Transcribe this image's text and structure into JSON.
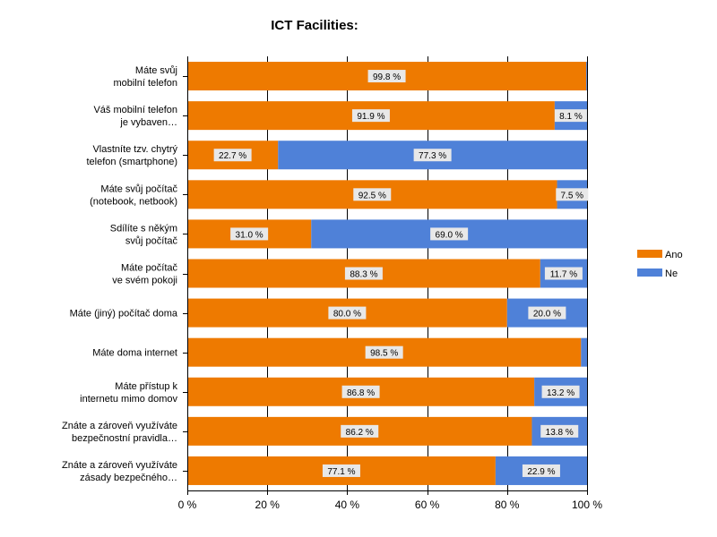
{
  "chart_data": {
    "type": "bar",
    "orientation": "horizontal",
    "stacked": "percent",
    "title": "ICT Facilities:",
    "categories": [
      [
        "Máte svůj",
        "mobilní telefon"
      ],
      [
        "Váš mobilní telefon",
        "je vybaven…"
      ],
      [
        "Vlastníte tzv. chytrý",
        "telefon (smartphone)"
      ],
      [
        "Máte svůj počítač",
        "(notebook, netbook)"
      ],
      [
        "Sdílíte s někým",
        "svůj počítač"
      ],
      [
        "Máte počítač",
        "ve svém pokoji"
      ],
      [
        "Máte (jiný) počítač doma"
      ],
      [
        "Máte doma internet"
      ],
      [
        "Máte přístup k",
        "internetu mimo domov"
      ],
      [
        "Znáte a zároveň využíváte",
        "bezpečnostní pravidla…"
      ],
      [
        "Znáte a zároveň využíváte",
        "zásady bezpečného…"
      ]
    ],
    "series": [
      {
        "name": "Ano",
        "color": "#ee7a00",
        "values": [
          99.8,
          91.9,
          22.7,
          92.5,
          31.0,
          88.3,
          80.0,
          98.5,
          86.8,
          86.2,
          77.1
        ],
        "labels": [
          "99.8 %",
          "91.9 %",
          "22.7 %",
          "92.5 %",
          "31.0 %",
          "88.3 %",
          "80.0 %",
          "98.5 %",
          "86.8 %",
          "86.2 %",
          "77.1 %"
        ]
      },
      {
        "name": "Ne",
        "color": "#4f81d8",
        "values": [
          0.2,
          8.1,
          77.3,
          7.5,
          69.0,
          11.7,
          20.0,
          1.5,
          13.2,
          13.8,
          22.9
        ],
        "labels": [
          "",
          "8.1 %",
          "77.3 %",
          "7.5 %",
          "69.0 %",
          "11.7 %",
          "20.0 %",
          "",
          "13.2 %",
          "13.8 %",
          "22.9 %"
        ]
      }
    ],
    "xlim": [
      0,
      100
    ],
    "xticks": [
      0,
      20,
      40,
      60,
      80,
      100
    ],
    "xtick_labels": [
      "0 %",
      "20 %",
      "40 %",
      "60 %",
      "80 %",
      "100 %"
    ],
    "grid": true,
    "legend_position": "right"
  }
}
